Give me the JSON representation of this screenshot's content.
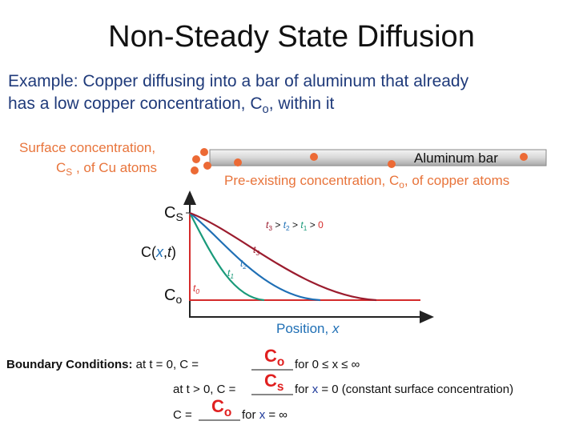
{
  "title": "Non-Steady State Diffusion",
  "intro": {
    "line1": "Example: Copper diffusing into a bar of aluminum that already",
    "line2": {
      "a": "has a low copper concentration, C",
      "sub": "o",
      "b": ", within it"
    }
  },
  "bar": {
    "surface_line1": "Surface concentration,",
    "surface_line2": {
      "a": "C",
      "sub": "S",
      "b": " , of Cu atoms"
    },
    "label": "Aluminum bar",
    "preexisting": {
      "a": "Pre-existing concentration, C",
      "sub": "o",
      "b": ", of copper atoms"
    }
  },
  "plot": {
    "cs": {
      "a": "C",
      "sub": "S"
    },
    "co": {
      "a": "C",
      "sub": "o"
    },
    "y_label": [
      "C(",
      "x",
      ",",
      "t",
      ")"
    ],
    "time_order": [
      {
        "t": "t",
        "sub": "3"
      },
      " > ",
      {
        "t": "t",
        "sub": "2"
      },
      " > ",
      {
        "t": "t",
        "sub": "1"
      },
      " > ",
      "0"
    ],
    "curve_labels": {
      "t3": {
        "t": "t",
        "sub": "3"
      },
      "t2": {
        "t": "t",
        "sub": "2"
      },
      "t1": {
        "t": "t",
        "sub": "1"
      },
      "t0": {
        "t": "t",
        "sub": "0"
      }
    },
    "x_label": {
      "a": "Position, ",
      "b": "x"
    }
  },
  "boundary": {
    "heading": "Boundary Conditions:",
    "row1": {
      "a": " at t = 0, C = ",
      "fill": {
        "a": "C",
        "sub": "o"
      },
      "b": "  for  0 ≤ x ≤ ∞"
    },
    "row2": {
      "a": "at t > 0, C = ",
      "fill": {
        "a": "C",
        "sub": "s"
      },
      "b": "  for  ",
      "x": "x",
      "c": " = 0  (constant surface concentration)"
    },
    "row3": {
      "a": "C = ",
      "fill": {
        "a": "C",
        "sub": "o"
      },
      "b": "  for  ",
      "x": "x",
      "c": " = ∞"
    }
  }
}
